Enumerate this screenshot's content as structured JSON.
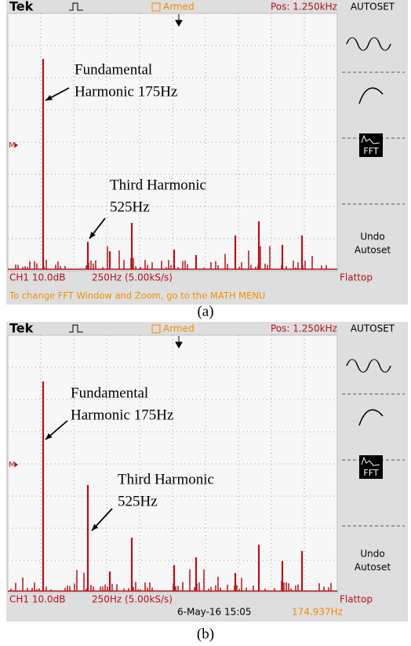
{
  "panels": [
    {
      "caption": "(a)",
      "header": {
        "brand": "Tek",
        "status": "Armed",
        "position": "Pos: 1.250kHz"
      },
      "menu": {
        "title": "AUTOSET",
        "fft_icon": "FFT",
        "undo": [
          "Undo",
          "Autoset"
        ]
      },
      "marker": "M",
      "footer": {
        "channel": "CH1 10.0dB",
        "timebase": "250Hz (5.00kS/s)",
        "window": "Flattop"
      },
      "message": "To change FFT Window and Zoom, go to the MATH MENU",
      "annotations": [
        {
          "lines": [
            "Fundamental",
            "Harmonic 175Hz"
          ]
        },
        {
          "lines": [
            "Third Harmonic",
            "525Hz"
          ]
        }
      ]
    },
    {
      "caption": "(b)",
      "header": {
        "brand": "Tek",
        "status": "Armed",
        "position": "Pos: 1.250kHz"
      },
      "menu": {
        "title": "AUTOSET",
        "fft_icon": "FFT",
        "undo": [
          "Undo",
          "Autoset"
        ]
      },
      "marker": "M",
      "footer": {
        "channel": "CH1 10.0dB",
        "timebase": "250Hz (5.00kS/s)",
        "window": "Flattop"
      },
      "readout": {
        "date": "6-May-16 15:05",
        "frequency": "174.937Hz"
      },
      "annotations": [
        {
          "lines": [
            "Fundamental",
            "Harmonic 175Hz"
          ]
        },
        {
          "lines": [
            "Third Harmonic",
            "525Hz"
          ]
        }
      ]
    }
  ]
}
